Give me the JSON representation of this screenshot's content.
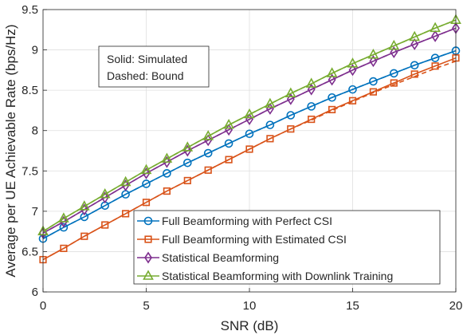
{
  "chart_data": {
    "type": "line",
    "title": "",
    "xlabel": "SNR (dB)",
    "ylabel": "Average per UE Achievable Rate (bps/Hz)",
    "xlim": [
      0,
      20
    ],
    "ylim": [
      6,
      9.5
    ],
    "xticks": [
      0,
      5,
      10,
      15,
      20
    ],
    "yticks": [
      6,
      6.5,
      7,
      7.5,
      8,
      8.5,
      9,
      9.5
    ],
    "grid": true,
    "legend_position": "bottom-right",
    "annotation": [
      "Solid: Simulated",
      "Dashed: Bound"
    ],
    "x": [
      0,
      1,
      2,
      3,
      4,
      5,
      6,
      7,
      8,
      9,
      10,
      11,
      12,
      13,
      14,
      15,
      16,
      17,
      18,
      19,
      20
    ],
    "series": [
      {
        "name": "Full Beamforming with Perfect CSI",
        "color": "#0072BD",
        "marker": "circle",
        "simulated": [
          6.66,
          6.8,
          6.93,
          7.07,
          7.21,
          7.34,
          7.47,
          7.6,
          7.72,
          7.84,
          7.96,
          8.07,
          8.19,
          8.3,
          8.41,
          8.51,
          8.61,
          8.71,
          8.81,
          8.9,
          8.99
        ],
        "bound": [
          6.66,
          6.8,
          6.93,
          7.07,
          7.21,
          7.34,
          7.47,
          7.6,
          7.72,
          7.84,
          7.96,
          8.07,
          8.19,
          8.3,
          8.41,
          8.51,
          8.61,
          8.71,
          8.81,
          8.9,
          8.99
        ]
      },
      {
        "name": "Full Beamforming with Estimated CSI",
        "color": "#D95319",
        "marker": "square",
        "simulated": [
          6.4,
          6.54,
          6.69,
          6.83,
          6.97,
          7.11,
          7.25,
          7.38,
          7.51,
          7.64,
          7.77,
          7.9,
          8.02,
          8.14,
          8.26,
          8.37,
          8.48,
          8.59,
          8.7,
          8.8,
          8.9
        ],
        "bound": [
          6.4,
          6.54,
          6.69,
          6.83,
          6.97,
          7.11,
          7.25,
          7.38,
          7.51,
          7.64,
          7.77,
          7.9,
          8.02,
          8.13,
          8.25,
          8.36,
          8.47,
          8.57,
          8.67,
          8.77,
          8.86
        ]
      },
      {
        "name": "Statistical Beamforming",
        "color": "#7E2F8E",
        "marker": "diamond",
        "simulated": [
          6.73,
          6.87,
          7.02,
          7.17,
          7.32,
          7.47,
          7.61,
          7.75,
          7.88,
          8.01,
          8.14,
          8.27,
          8.39,
          8.51,
          8.63,
          8.75,
          8.86,
          8.97,
          9.07,
          9.17,
          9.27
        ],
        "bound": [
          6.73,
          6.87,
          7.02,
          7.17,
          7.32,
          7.47,
          7.61,
          7.75,
          7.88,
          8.01,
          8.14,
          8.27,
          8.39,
          8.51,
          8.63,
          8.75,
          8.86,
          8.97,
          9.07,
          9.17,
          9.27
        ]
      },
      {
        "name": "Statistical Beamforming with Downlink Training",
        "color": "#77AC30",
        "marker": "triangle",
        "simulated": [
          6.75,
          6.91,
          7.06,
          7.21,
          7.36,
          7.51,
          7.65,
          7.79,
          7.93,
          8.07,
          8.2,
          8.33,
          8.46,
          8.58,
          8.71,
          8.83,
          8.94,
          9.05,
          9.16,
          9.27,
          9.37
        ],
        "bound": [
          6.75,
          6.91,
          7.06,
          7.21,
          7.36,
          7.51,
          7.65,
          7.79,
          7.93,
          8.07,
          8.2,
          8.33,
          8.46,
          8.58,
          8.71,
          8.83,
          8.94,
          9.05,
          9.16,
          9.27,
          9.37
        ]
      }
    ]
  }
}
